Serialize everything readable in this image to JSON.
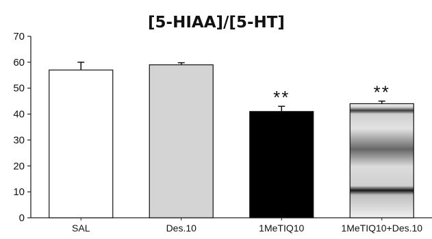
{
  "chart_data": {
    "type": "bar",
    "title": "[5-HIAA]/[5-HT]",
    "xlabel": "",
    "ylabel": "",
    "ylim": [
      0,
      70
    ],
    "yticks": [
      0,
      10,
      20,
      30,
      40,
      50,
      60,
      70
    ],
    "grid": false,
    "legend": "none",
    "categories": [
      "SAL",
      "Des.10",
      "1MeTIQ10",
      "1MeTIQ10+Des.10"
    ],
    "values": [
      57,
      59,
      41,
      44
    ],
    "error_bars": [
      3,
      0.8,
      2,
      1
    ],
    "annotations": [
      "",
      "",
      "**",
      "**"
    ],
    "bar_fills": [
      "#ffffff",
      "#d4d4d4",
      "#000000",
      "gradient-bands"
    ]
  }
}
